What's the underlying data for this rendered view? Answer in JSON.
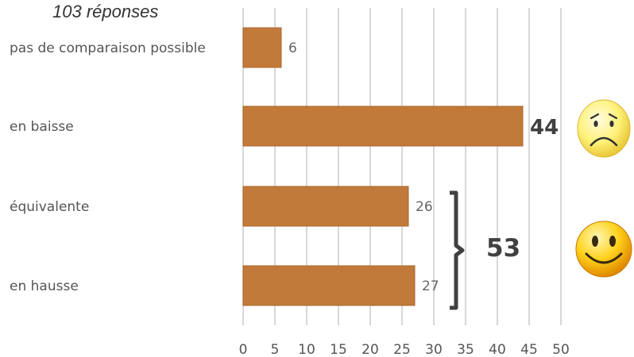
{
  "subtitle": "103 réponses",
  "chart_data": {
    "type": "bar",
    "orientation": "horizontal",
    "categories": [
      "pas de comparaison possible",
      "en baisse",
      "équivalente",
      "en hausse"
    ],
    "values": [
      6,
      44,
      26,
      27
    ],
    "value_labels": [
      "6",
      "44",
      "26",
      "27"
    ],
    "emphasized_labels": [
      false,
      true,
      false,
      false
    ],
    "xlim": [
      0,
      50
    ],
    "xticks": [
      0,
      5,
      10,
      15,
      20,
      25,
      30,
      35,
      40,
      45,
      50
    ],
    "grid": "vertical",
    "bar_color": "#C27A3A",
    "group_total": {
      "label": "53",
      "categories": [
        "équivalente",
        "en hausse"
      ]
    }
  },
  "icons": {
    "negative": "sad-face-icon",
    "positive": "smiley-face-icon"
  }
}
